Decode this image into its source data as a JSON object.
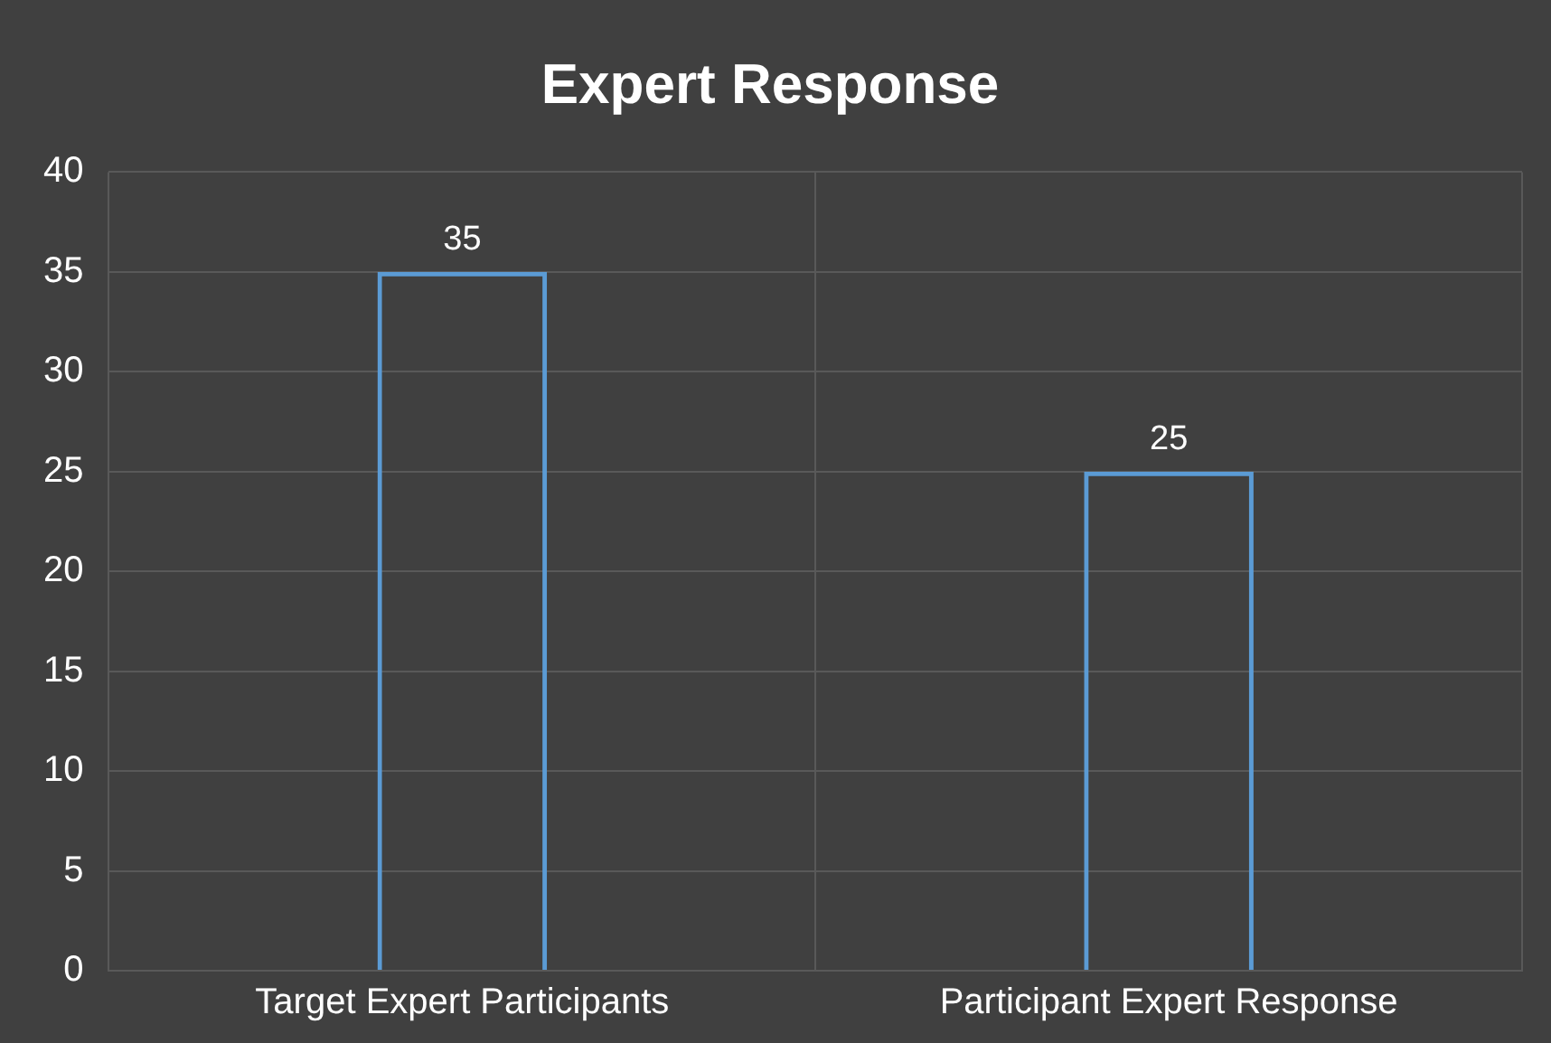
{
  "chart_data": {
    "type": "bar",
    "title": "Expert Response",
    "categories": [
      "Target Expert Participants",
      "Participant Expert Response"
    ],
    "values": [
      35,
      25
    ],
    "color": "#5b9bd5",
    "ylim": [
      0,
      40
    ],
    "yticks": [
      0,
      5,
      10,
      15,
      20,
      25,
      30,
      35,
      40
    ],
    "grid": true,
    "data_labels": true,
    "legend": false
  }
}
